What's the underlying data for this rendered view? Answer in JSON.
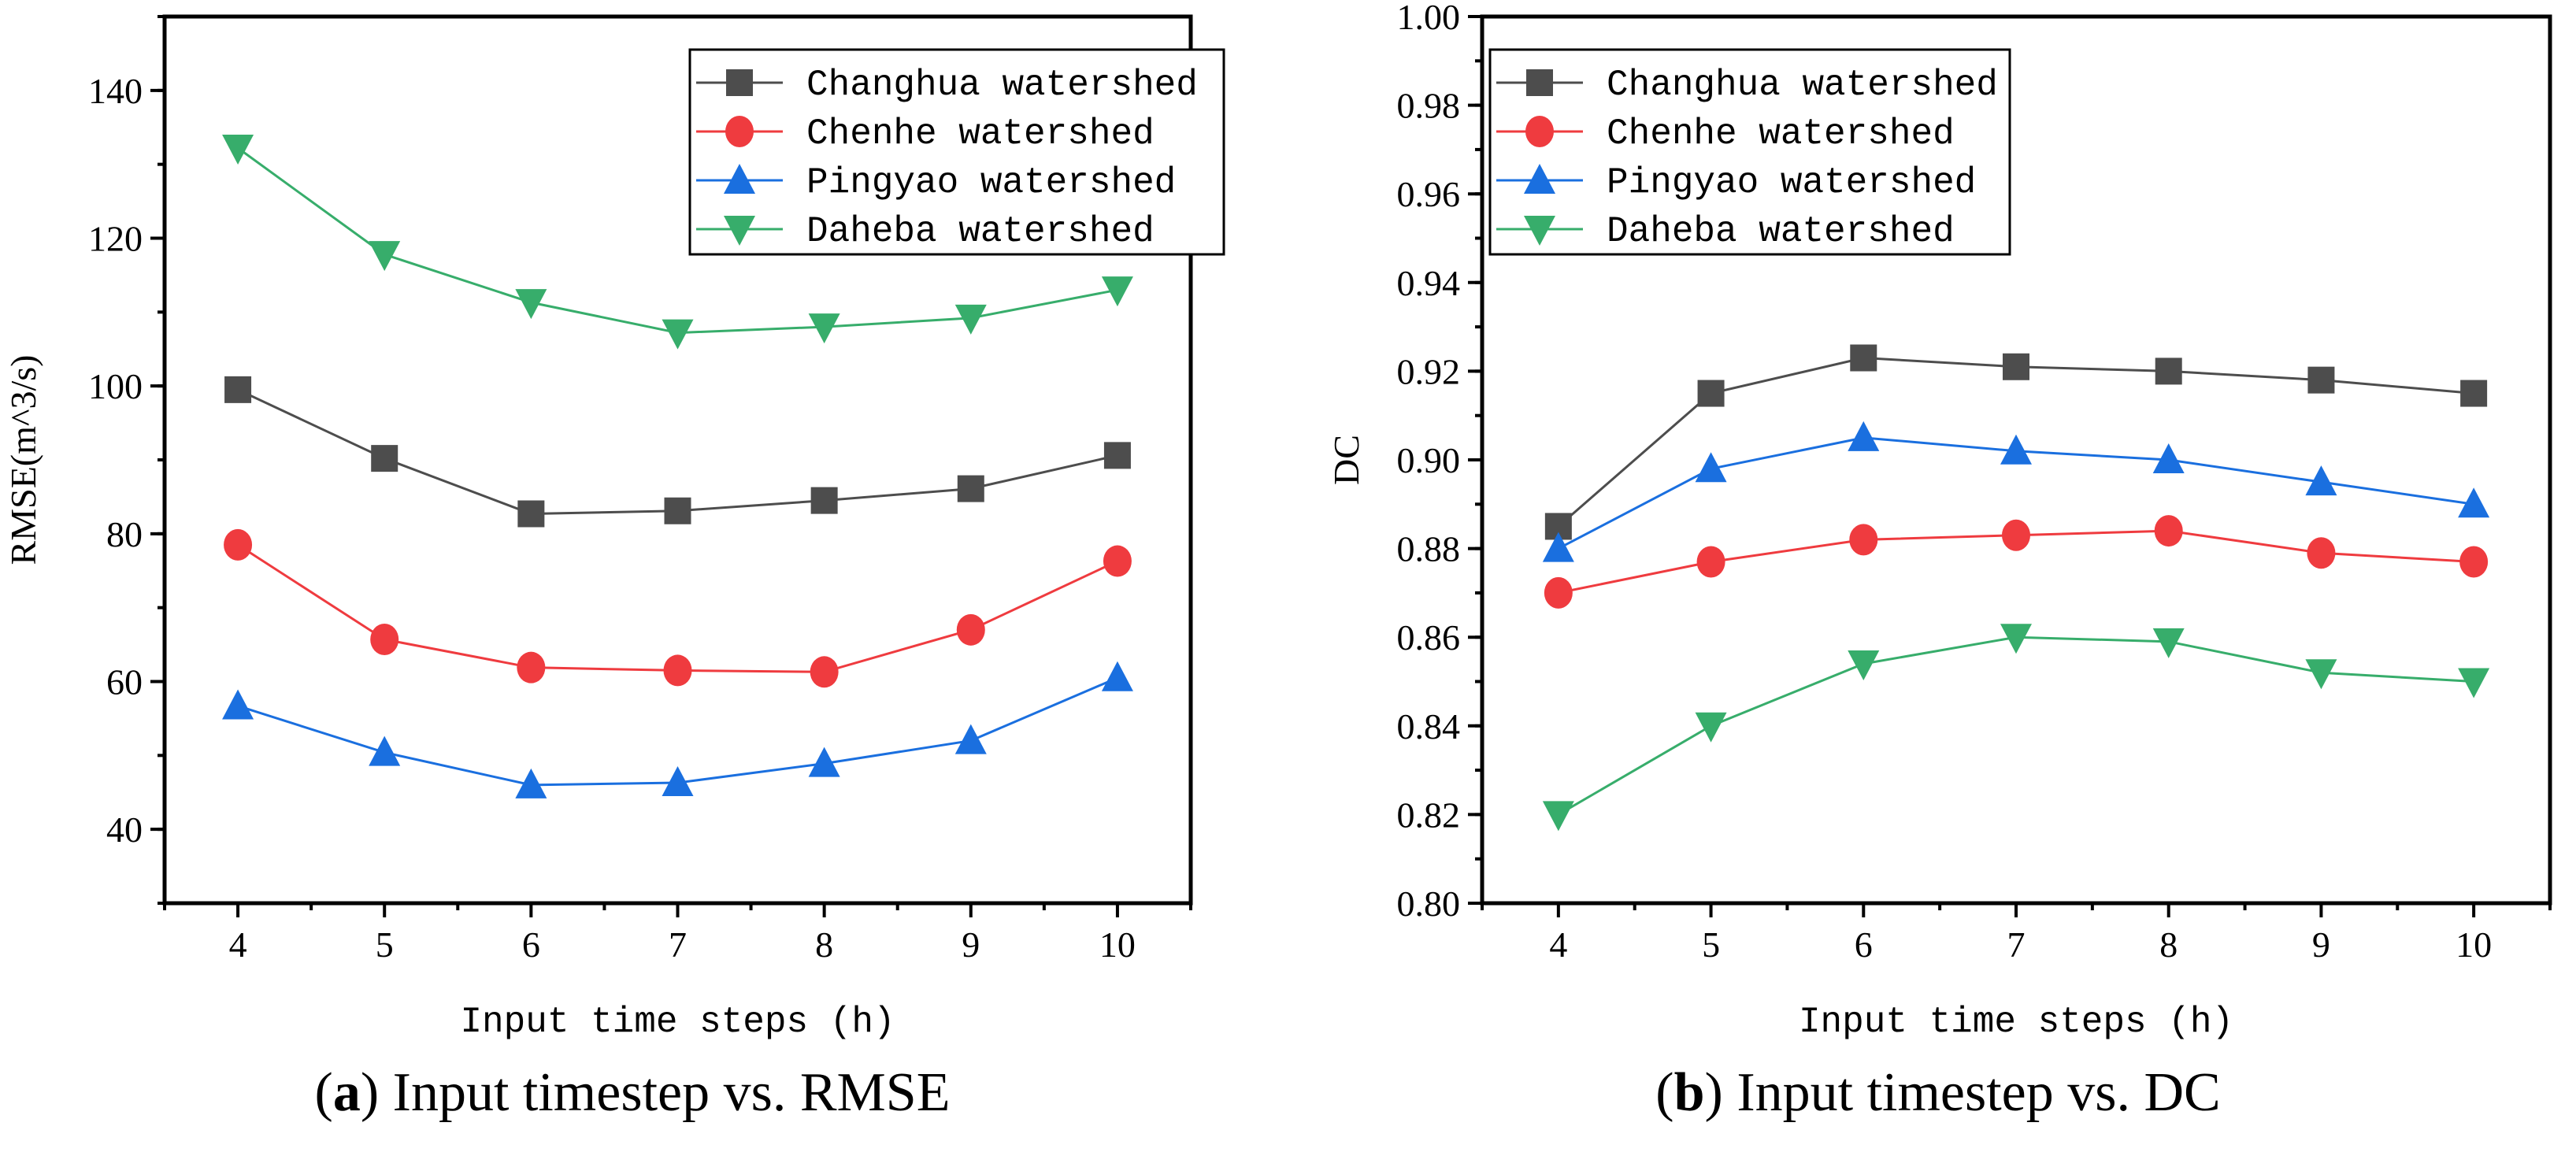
{
  "chart_data": [
    {
      "type": "line",
      "caption_letter": "a",
      "caption_text": " Input timestep vs. RMSE",
      "xlabel": "Input time steps (h)",
      "ylabel": "RMSE(m^3/s)",
      "x": [
        4,
        5,
        6,
        7,
        8,
        9,
        10
      ],
      "xlim": [
        3.5,
        10.5
      ],
      "ylim": [
        30,
        150
      ],
      "yticks": [
        40,
        60,
        80,
        100,
        120,
        140
      ],
      "yminor": 10,
      "ydecimals": 0,
      "legend_position": "top-right",
      "series": [
        {
          "name": "Changhua watershed",
          "marker": "square",
          "color": "#4d4d4d",
          "values": [
            99.5,
            90.2,
            82.7,
            83.1,
            84.5,
            86.1,
            90.6
          ]
        },
        {
          "name": "Chenhe watershed",
          "marker": "circle",
          "color": "#ef3b3f",
          "values": [
            78.5,
            65.7,
            61.9,
            61.5,
            61.3,
            67.0,
            76.3
          ]
        },
        {
          "name": "Pingyao watershed",
          "marker": "triangle-up",
          "color": "#1a6fdf",
          "values": [
            56.7,
            50.4,
            46.0,
            46.3,
            48.9,
            52.0,
            60.5
          ]
        },
        {
          "name": "Daheba watershed",
          "marker": "triangle-down",
          "color": "#37ad6b",
          "values": [
            132.2,
            117.8,
            111.3,
            107.2,
            108.0,
            109.2,
            113.0
          ]
        }
      ]
    },
    {
      "type": "line",
      "caption_letter": "b",
      "caption_text": " Input timestep vs. DC",
      "xlabel": "Input time steps (h)",
      "ylabel": "DC",
      "x": [
        4,
        5,
        6,
        7,
        8,
        9,
        10
      ],
      "xlim": [
        3.5,
        10.5
      ],
      "ylim": [
        0.8,
        1.0
      ],
      "yticks": [
        0.8,
        0.82,
        0.84,
        0.86,
        0.88,
        0.9,
        0.92,
        0.94,
        0.96,
        0.98,
        1.0
      ],
      "yminor": 0.01,
      "ydecimals": 2,
      "legend_position": "top-left",
      "series": [
        {
          "name": "Changhua watershed",
          "marker": "square",
          "color": "#4d4d4d",
          "values": [
            0.885,
            0.915,
            0.923,
            0.921,
            0.92,
            0.918,
            0.915
          ]
        },
        {
          "name": "Chenhe watershed",
          "marker": "circle",
          "color": "#ef3b3f",
          "values": [
            0.87,
            0.877,
            0.882,
            0.883,
            0.884,
            0.879,
            0.877
          ]
        },
        {
          "name": "Pingyao watershed",
          "marker": "triangle-up",
          "color": "#1a6fdf",
          "values": [
            0.88,
            0.898,
            0.905,
            0.902,
            0.9,
            0.895,
            0.89
          ]
        },
        {
          "name": "Daheba watershed",
          "marker": "triangle-down",
          "color": "#37ad6b",
          "values": [
            0.82,
            0.84,
            0.854,
            0.86,
            0.859,
            0.852,
            0.85
          ]
        }
      ]
    }
  ]
}
